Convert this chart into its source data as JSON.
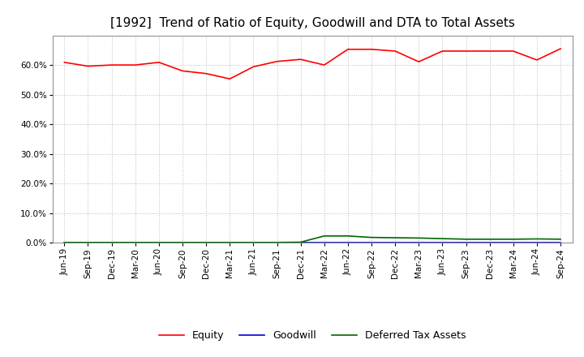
{
  "title": "[1992]  Trend of Ratio of Equity, Goodwill and DTA to Total Assets",
  "x_labels": [
    "Jun-19",
    "Sep-19",
    "Dec-19",
    "Mar-20",
    "Jun-20",
    "Sep-20",
    "Dec-20",
    "Mar-21",
    "Jun-21",
    "Sep-21",
    "Dec-21",
    "Mar-22",
    "Jun-22",
    "Sep-22",
    "Dec-22",
    "Mar-23",
    "Jun-23",
    "Sep-23",
    "Dec-23",
    "Mar-24",
    "Jun-24",
    "Sep-24"
  ],
  "equity": [
    0.61,
    0.597,
    0.601,
    0.601,
    0.61,
    0.581,
    0.572,
    0.554,
    0.595,
    0.613,
    0.62,
    0.601,
    0.654,
    0.654,
    0.648,
    0.612,
    0.648,
    0.648,
    0.648,
    0.648,
    0.618,
    0.656
  ],
  "goodwill": [
    0.0,
    0.0,
    0.0,
    0.0,
    0.0,
    0.0,
    0.0,
    0.0,
    0.0,
    0.0,
    0.0,
    0.0,
    0.0,
    0.0,
    0.0,
    0.0,
    0.0,
    0.0,
    0.0,
    0.0,
    0.0,
    0.0
  ],
  "dta": [
    0.001,
    0.001,
    0.001,
    0.001,
    0.001,
    0.001,
    0.001,
    0.001,
    0.001,
    0.001,
    0.002,
    0.023,
    0.023,
    0.018,
    0.017,
    0.016,
    0.014,
    0.012,
    0.012,
    0.012,
    0.013,
    0.012
  ],
  "equity_color": "#ff0000",
  "goodwill_color": "#0000cc",
  "dta_color": "#006600",
  "ylim": [
    0.0,
    0.7
  ],
  "yticks": [
    0.0,
    0.1,
    0.2,
    0.3,
    0.4,
    0.5,
    0.6
  ],
  "background_color": "#ffffff",
  "plot_bg_color": "#ffffff",
  "grid_color": "#bbbbbb",
  "title_fontsize": 11,
  "tick_fontsize": 7.5,
  "legend_labels": [
    "Equity",
    "Goodwill",
    "Deferred Tax Assets"
  ]
}
